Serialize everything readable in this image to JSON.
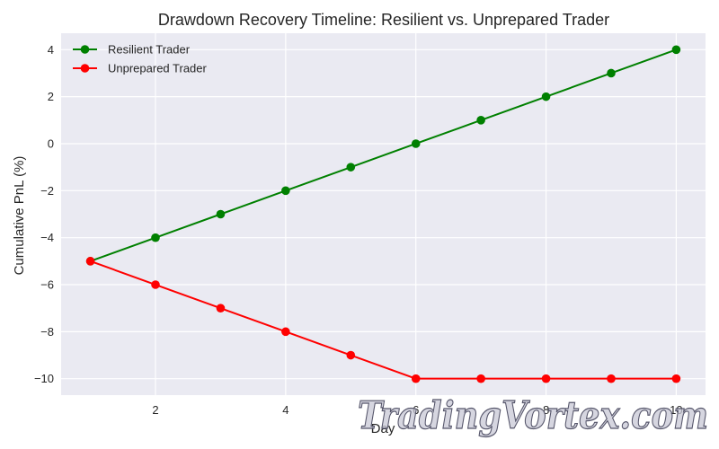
{
  "chart_data": {
    "type": "line",
    "title": "Drawdown Recovery Timeline: Resilient vs. Unprepared Trader",
    "xlabel": "Day",
    "ylabel": "Cumulative PnL (%)",
    "x": [
      1,
      2,
      3,
      4,
      5,
      6,
      7,
      8,
      9,
      10
    ],
    "xlim": [
      0.55,
      10.45
    ],
    "ylim": [
      -10.7,
      4.7
    ],
    "xticks": [
      2,
      4,
      6,
      8,
      10
    ],
    "yticks": [
      -10,
      -8,
      -6,
      -4,
      -2,
      0,
      2,
      4
    ],
    "grid": true,
    "legend_position": "top-left",
    "series": [
      {
        "name": "Resilient Trader",
        "color": "#008000",
        "values": [
          -5,
          -4,
          -3,
          -2,
          -1,
          0,
          1,
          2,
          3,
          4
        ]
      },
      {
        "name": "Unprepared Trader",
        "color": "#ff0000",
        "values": [
          -5,
          -6,
          -7,
          -8,
          -9,
          -10,
          -10,
          -10,
          -10,
          -10
        ]
      }
    ]
  },
  "watermark": {
    "text": "TradingVortex.com"
  },
  "colors": {
    "plot_background": "#eaeaf2",
    "grid": "#ffffff",
    "text": "#262626"
  }
}
